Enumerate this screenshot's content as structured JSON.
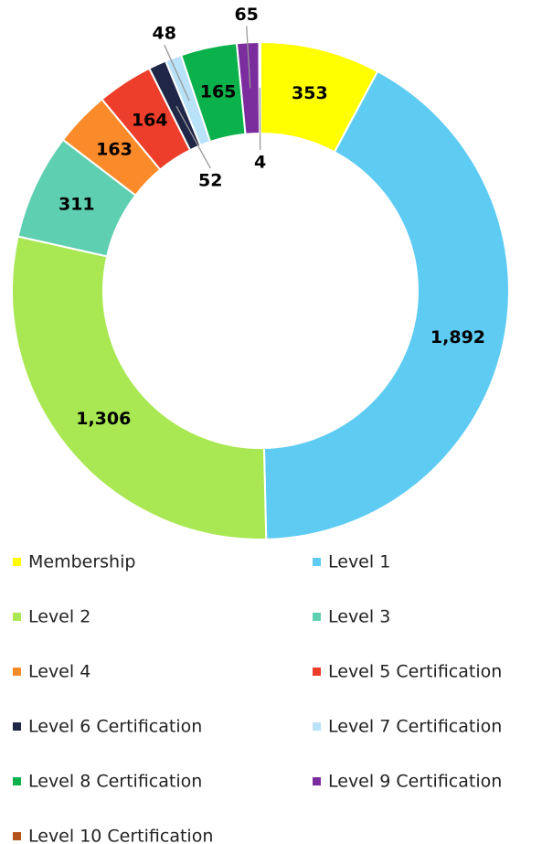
{
  "chart_data": {
    "type": "donut",
    "categories": [
      "Membership",
      "Level 1",
      "Level 2",
      "Level 3",
      "Level 4",
      "Level 5 Certification",
      "Level 6 Certification",
      "Level 7 Certification",
      "Level 8 Certification",
      "Level 9 Certification",
      "Level 10 Certification"
    ],
    "values": [
      353,
      1892,
      1306,
      311,
      163,
      164,
      52,
      48,
      165,
      65,
      4
    ],
    "value_labels": [
      "353",
      "1,892",
      "1,306",
      "311",
      "163",
      "164",
      "52",
      "48",
      "165",
      "65",
      "4"
    ],
    "colors": [
      "#ffff00",
      "#5ecbf3",
      "#a9e852",
      "#5ecfb1",
      "#fb8a2a",
      "#ec3e2a",
      "#1f2647",
      "#b9e1f7",
      "#0bb14a",
      "#7b2d9e",
      "#b5521b"
    ],
    "legend": "bottom"
  }
}
